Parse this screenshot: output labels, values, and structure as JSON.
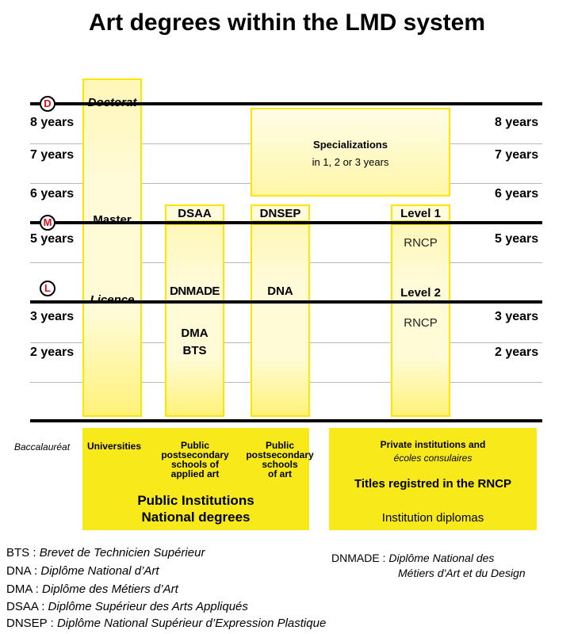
{
  "title": "Art degrees within the LMD system",
  "years": {
    "left": [
      "8 years",
      "7 years",
      "6 years",
      "5 years",
      "3 years",
      "2 years"
    ],
    "right": [
      "8 years",
      "7 years",
      "6 years",
      "5 years",
      "3 years",
      "2 years"
    ]
  },
  "badges": {
    "d": "D",
    "m": "M",
    "l": "L"
  },
  "degrees": {
    "doctorat": "Doctorat",
    "master": "Master",
    "licence": "Licence"
  },
  "columns": {
    "dsaa": "DSAA",
    "dnmade": "DNMADE",
    "dma": "DMA",
    "bts": "BTS",
    "dnsep": "DNSEP",
    "dna": "DNA",
    "level1": "Level 1",
    "rncp1": "RNCP",
    "level2": "Level 2",
    "rncp2": "RNCP"
  },
  "specializations": {
    "title": "Specializations",
    "subtitle": "in 1, 2 or 3 years"
  },
  "baccalaureat": "Baccalauréat",
  "institutions": {
    "universities": "Universities",
    "applied": [
      "Public",
      "postsecondary",
      "schools of",
      "applied art"
    ],
    "art": [
      "Public",
      "postsecondary",
      "schools",
      "of art"
    ],
    "public_line1": "Public Institutions",
    "public_line2": "National degrees",
    "private_line1": "Private institutions and",
    "private_line2": "écoles consulaires",
    "rncp_titles": "Titles registred in the RNCP",
    "institution_diplomas": "Institution diplomas"
  },
  "glossary": [
    {
      "abbr": "BTS",
      "sep": " : ",
      "def": "Brevet de Technicien Supérieur"
    },
    {
      "abbr": "DNA",
      "sep": " : ",
      "def": "Diplôme National d’Art"
    },
    {
      "abbr": "DMA",
      "sep": " : ",
      "def": "Diplôme des Métiers d’Art"
    },
    {
      "abbr": "DSAA",
      "sep": " : ",
      "def": "Diplôme Supérieur des Arts Appliqués"
    },
    {
      "abbr": "DNSEP",
      "sep": " : ",
      "def": "Diplôme National Supérieur d’Expression Plastique"
    }
  ],
  "dnmade_gloss": {
    "abbr": "DNMADE",
    "sep": " : ",
    "def1": "Diplôme National des",
    "def2": "Métiers d'Art et du Design"
  },
  "colors": {
    "yellow": "#f7e91a",
    "pale_yellow": "#fffbd8",
    "border_yellow": "#ffe600",
    "badge_red": "#e0101a"
  }
}
